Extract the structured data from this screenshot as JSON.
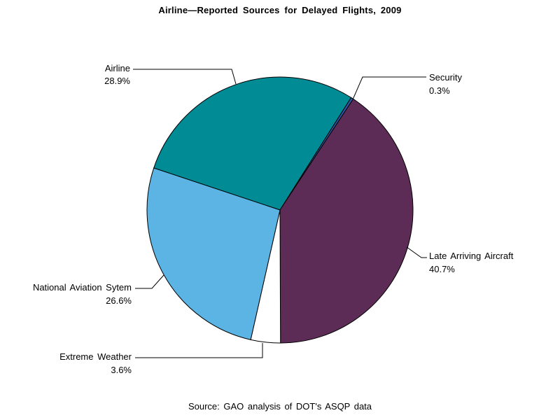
{
  "page": {
    "background_color": "#ffffff",
    "text_color": "#000000"
  },
  "chart_data": {
    "type": "pie",
    "title": "Airline—Reported Sources for Delayed Flights, 2009",
    "source_note": "Source: GAO analysis of DOT's ASQP data",
    "start_angle_deg": -71.6,
    "rotation": "clockwise",
    "outline_color": "#000000",
    "legend_position": "callout-labels-with-leader-lines",
    "slices": [
      {
        "label": "Airline",
        "value": 28.9,
        "display": "28.9%",
        "color": "#008B95"
      },
      {
        "label": "Security",
        "value": 0.3,
        "display": "0.3%",
        "color": "#2E58A7"
      },
      {
        "label": "Late Arriving Aircraft",
        "value": 40.7,
        "display": "40.7%",
        "color": "#5C2B56"
      },
      {
        "label": "Extreme Weather",
        "value": 3.6,
        "display": "3.6%",
        "color": "#FFFFFF"
      },
      {
        "label": "National Aviation Sytem",
        "value": 26.6,
        "display": "26.6%",
        "color": "#5BB4E4"
      }
    ]
  }
}
